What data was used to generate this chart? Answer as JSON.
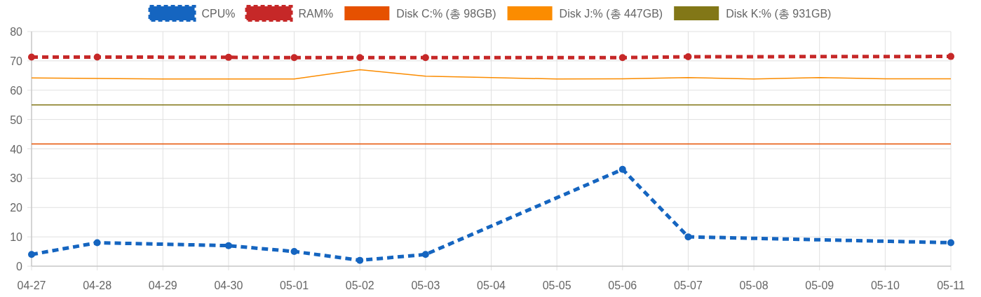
{
  "chart_data": {
    "type": "line",
    "categories": [
      "04-27",
      "04-28",
      "04-29",
      "04-30",
      "05-01",
      "05-02",
      "05-03",
      "05-04",
      "05-05",
      "05-06",
      "05-07",
      "05-08",
      "05-09",
      "05-10",
      "05-11"
    ],
    "ylim": [
      0,
      80
    ],
    "yticks": [
      0,
      10,
      20,
      30,
      40,
      50,
      60,
      70,
      80
    ],
    "grid": true,
    "legend": "top",
    "series": [
      {
        "name": "CPU%",
        "color": "#1565c0",
        "line_style": "dashed",
        "marker": "circle",
        "values": [
          4,
          8,
          null,
          7,
          5,
          2,
          4,
          null,
          null,
          33,
          10,
          null,
          null,
          null,
          8
        ]
      },
      {
        "name": "RAM%",
        "color": "#c62828",
        "line_style": "dashed",
        "marker": "circle",
        "values": [
          71.3,
          71.3,
          null,
          71.2,
          71.1,
          71.1,
          71.1,
          null,
          null,
          71.1,
          71.4,
          null,
          null,
          null,
          71.5
        ]
      },
      {
        "name": "Disk C:% (총 98GB)",
        "color": "#e65100",
        "line_style": "solid",
        "marker": "none",
        "values": [
          41.7,
          41.7,
          41.7,
          41.7,
          41.7,
          41.7,
          41.7,
          41.7,
          41.7,
          41.7,
          41.7,
          41.7,
          41.7,
          41.7,
          41.7
        ]
      },
      {
        "name": "Disk J:% (총 447GB)",
        "color": "#fb8c00",
        "line_style": "solid",
        "marker": "none",
        "values": [
          64.2,
          64.0,
          63.8,
          63.8,
          63.8,
          67.0,
          64.8,
          64.3,
          63.8,
          63.9,
          64.3,
          63.8,
          64.3,
          63.9,
          63.9
        ]
      },
      {
        "name": "Disk K:% (총 931GB)",
        "color": "#827717",
        "line_style": "solid",
        "marker": "none",
        "values": [
          55,
          55,
          55,
          55,
          55,
          55,
          55,
          55,
          55,
          55,
          55,
          55,
          55,
          55,
          55
        ]
      }
    ]
  }
}
